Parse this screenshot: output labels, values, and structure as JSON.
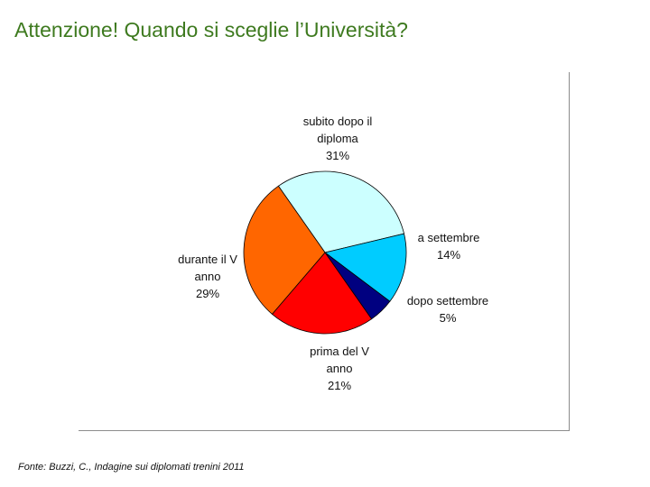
{
  "slide": {
    "title": "Attenzione! Quando si sceglie l’Università?",
    "footnote": "Fonte: Buzzi, C., Indagine sui diplomati trenini 2011"
  },
  "chart_data": {
    "type": "pie",
    "title": "",
    "legend": "none",
    "slices": [
      {
        "label": [
          "subito dopo il",
          "diploma"
        ],
        "value": 31,
        "value_label": "31%",
        "color": "#ccffff"
      },
      {
        "label": [
          "a settembre"
        ],
        "value": 14,
        "value_label": "14%",
        "color": "#00ccff"
      },
      {
        "label": [
          "dopo settembre"
        ],
        "value": 5,
        "value_label": "5%",
        "color": "#000080"
      },
      {
        "label": [
          "prima del V",
          "anno"
        ],
        "value": 21,
        "value_label": "21%",
        "color": "#ff0000"
      },
      {
        "label": [
          "durante il V",
          "anno"
        ],
        "value": 29,
        "value_label": "29%",
        "color": "#ff6600"
      }
    ]
  }
}
